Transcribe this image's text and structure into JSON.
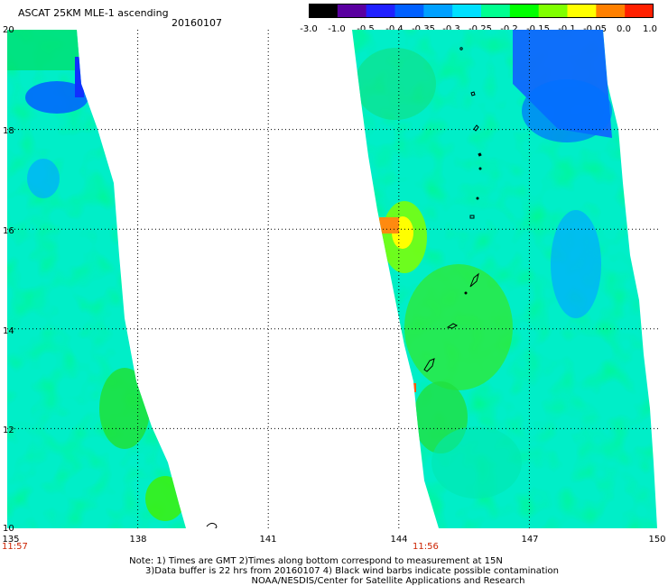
{
  "header": {
    "title": "ASCAT 25KM MLE-1 ascending",
    "date": "20160107"
  },
  "colorbar": {
    "labels": [
      "-3.0",
      "-1.0",
      "-0.5",
      "-0.4",
      "-0.35",
      "-0.3",
      "-0.25",
      "-0.2",
      "-0.15",
      "-0.1",
      "-0.05",
      "0.0",
      "1.0"
    ],
    "colors": [
      "#000000",
      "#5a00a0",
      "#2020ff",
      "#0060ff",
      "#00a0ff",
      "#00e0ff",
      "#00ff90",
      "#00ff00",
      "#80ff00",
      "#ffff00",
      "#ff8000",
      "#ff2000"
    ]
  },
  "map": {
    "lon_range": [
      135,
      150
    ],
    "lat_range": [
      10,
      20
    ],
    "x_ticks": [
      "135",
      "138",
      "141",
      "144",
      "147",
      "150"
    ],
    "y_ticks": [
      "20",
      "18",
      "16",
      "14",
      "12",
      "10"
    ],
    "pass_times": [
      "11:57",
      "11:56"
    ],
    "gridlines": true
  },
  "notes": {
    "line1": "Note: 1) Times are GMT 2)Times along bottom correspond to measurement at 15N",
    "line2": "3)Data buffer is 22 hrs from 20160107 4) Black wind barbs indicate possible contamination",
    "line3": "NOAA/NESDIS/Center for Satellite Applications and Research"
  }
}
